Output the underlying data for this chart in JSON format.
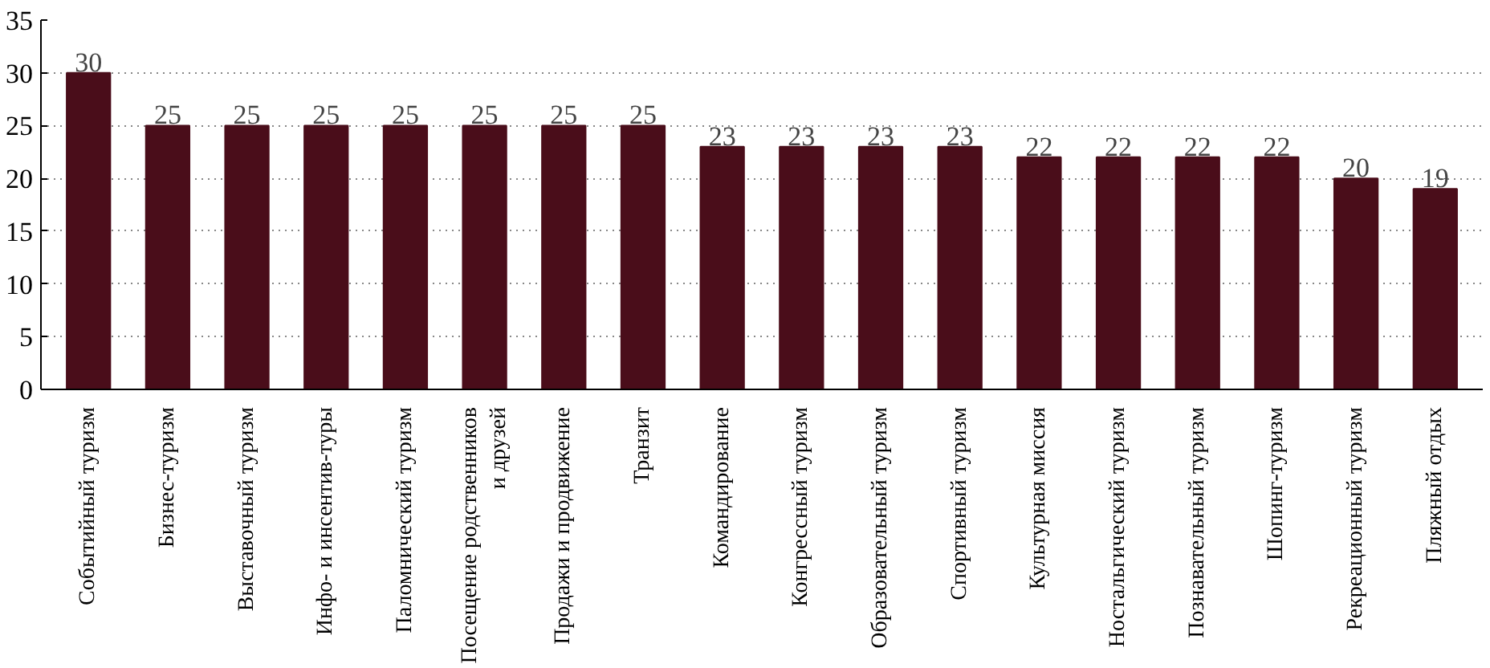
{
  "chart_data": {
    "type": "bar",
    "categories": [
      "Событийный туризм",
      "Бизнес-туризм",
      "Выставочный туризм",
      "Инфо- и инсентив-туры",
      "Паломнический туризм",
      "Посещение родственников\nи друзей",
      "Продажи и продвижение",
      "Транзит",
      "Командирование",
      "Конгрессный туризм",
      "Образовательный туризм",
      "Спортивный туризм",
      "Культурная миссия",
      "Ностальгический туризм",
      "Познавательный туризм",
      "Шопинг-туризм",
      "Рекреационный туризм",
      "Пляжный отдых"
    ],
    "values": [
      30,
      25,
      25,
      25,
      25,
      25,
      25,
      25,
      23,
      23,
      23,
      23,
      22,
      22,
      22,
      22,
      20,
      19
    ],
    "color": "#4a0d1a",
    "ylim": [
      0,
      35
    ],
    "yticks": [
      0,
      5,
      10,
      15,
      20,
      25,
      30,
      35
    ],
    "grid": "y",
    "data_labels": true
  }
}
